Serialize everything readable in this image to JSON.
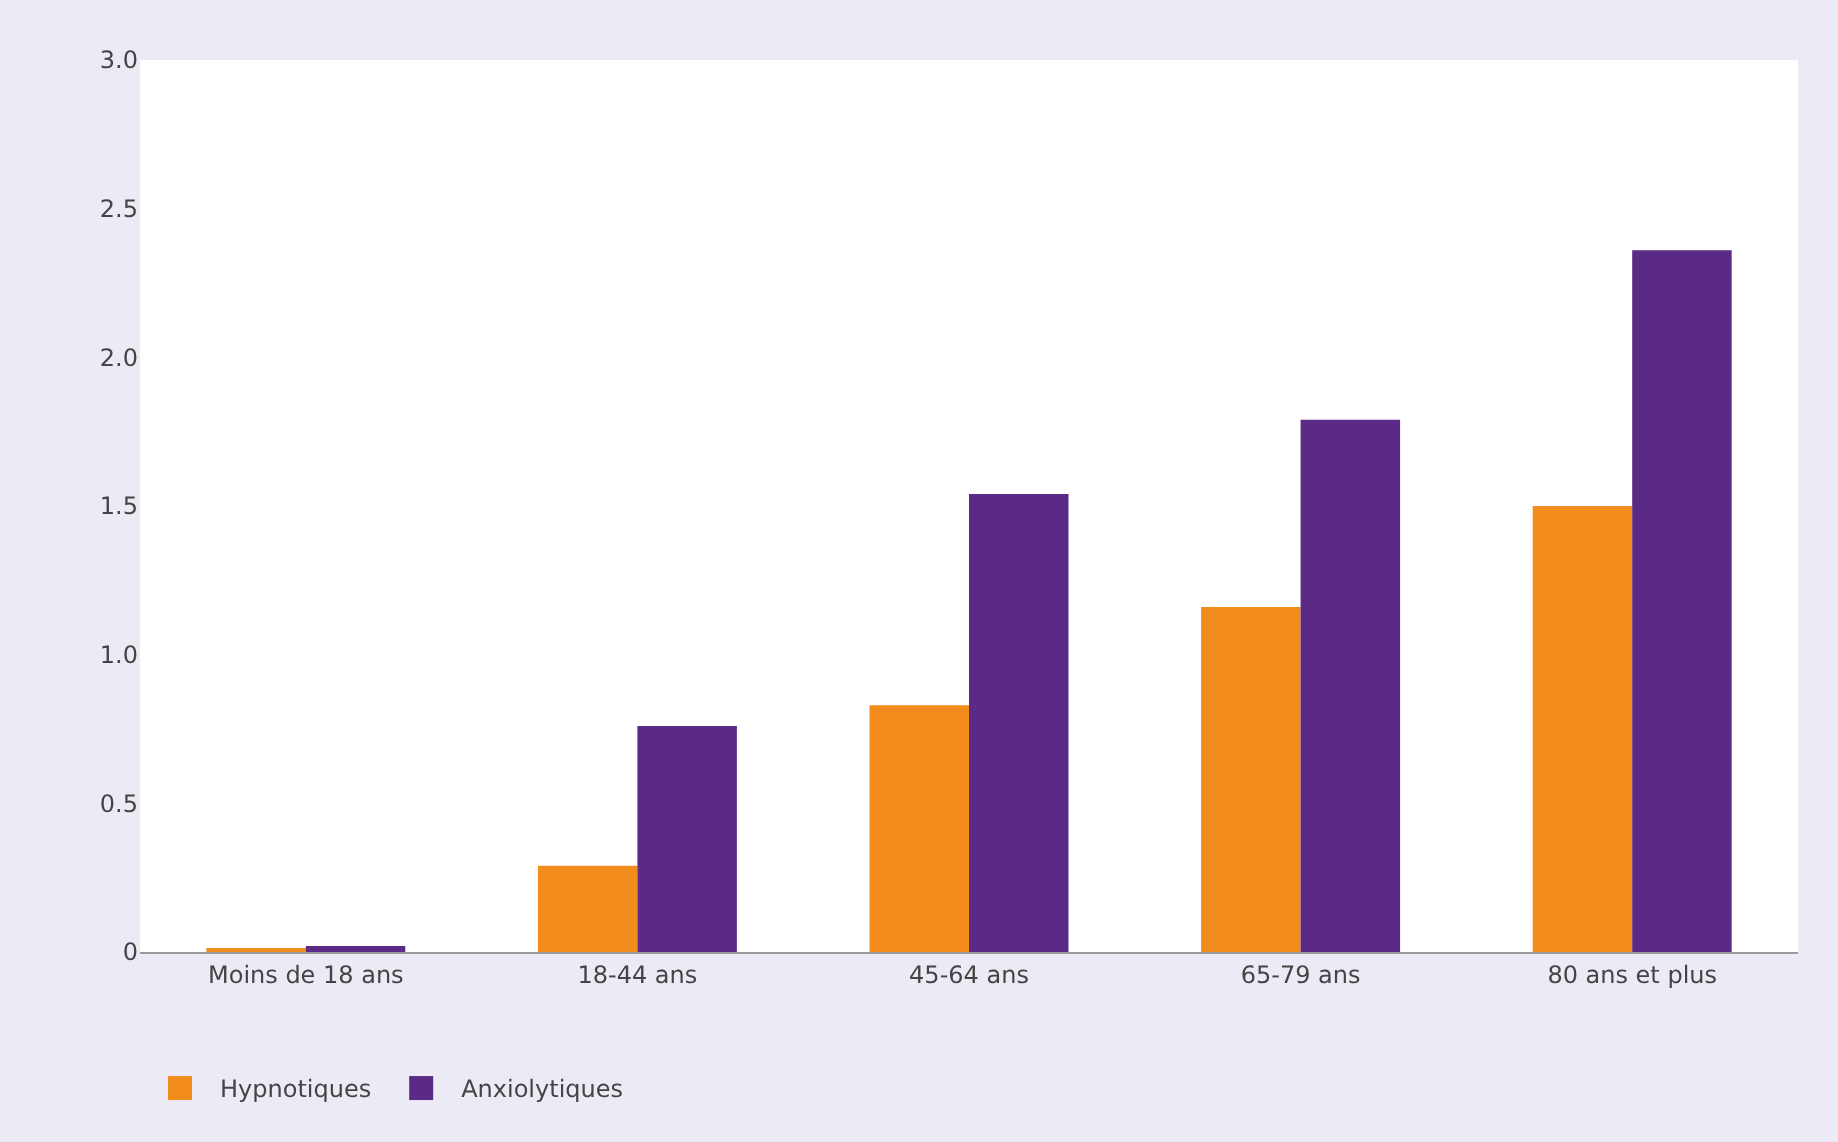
{
  "chart_data": {
    "type": "bar",
    "categories": [
      "Moins de 18 ans",
      "18-44 ans",
      "45-64 ans",
      "65-79 ans",
      "80 ans et plus"
    ],
    "series": [
      {
        "name": "Hypnotiques",
        "color": "#f28c1c",
        "values": [
          0.01,
          0.29,
          0.83,
          1.16,
          1.5
        ]
      },
      {
        "name": "Anxiolytiques",
        "color": "#5b2a86",
        "values": [
          0.02,
          0.76,
          1.54,
          1.79,
          2.36
        ]
      }
    ],
    "ylim": [
      0,
      3.0
    ],
    "yticks": [
      0,
      {
        "value": 0.5,
        "label": "0.5"
      },
      {
        "value": 1.0,
        "label": "1.0"
      },
      {
        "value": 1.5,
        "label": "1.5"
      },
      {
        "value": 2.0,
        "label": "2.0"
      },
      {
        "value": 2.5,
        "label": "2.5"
      },
      {
        "value": 3.0,
        "label": "3.0"
      }
    ],
    "legend": "bottom left"
  }
}
